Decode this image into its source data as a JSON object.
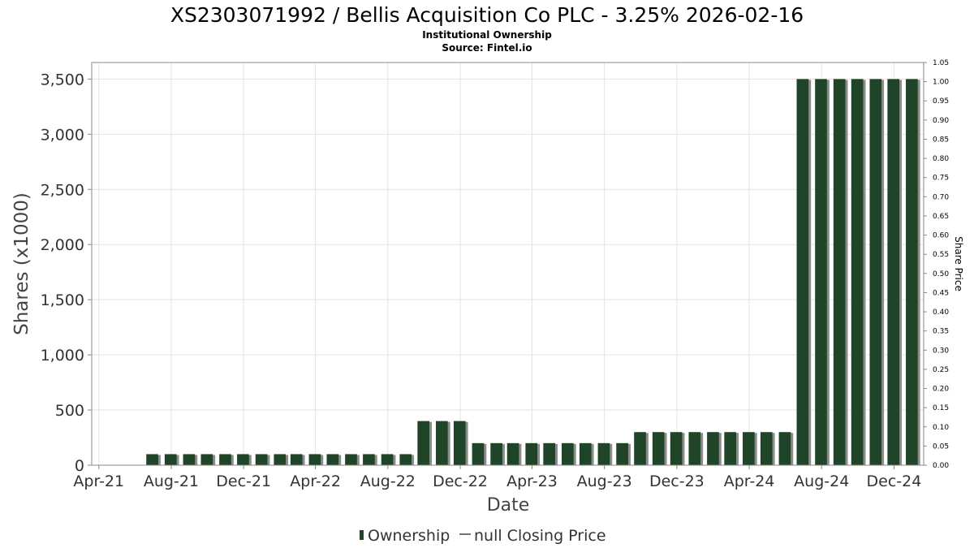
{
  "chart_data": {
    "type": "bar",
    "title": "XS2303071992 / Bellis Acquisition Co PLC - 3.25% 2026-02-16",
    "subtitle_lines": [
      "Institutional Ownership",
      "Source: Fintel.io"
    ],
    "xlabel": "Date",
    "ylabel": "Shares (x1000)",
    "y2label": "Share Price",
    "x_ticks": [
      "Apr-21",
      "Aug-21",
      "Dec-21",
      "Apr-22",
      "Aug-22",
      "Dec-22",
      "Apr-23",
      "Aug-23",
      "Dec-23",
      "Apr-24",
      "Aug-24",
      "Dec-24"
    ],
    "x_tick_dates": [
      "2021-04-01",
      "2021-08-01",
      "2021-12-01",
      "2022-04-01",
      "2022-08-01",
      "2022-12-01",
      "2023-04-01",
      "2023-08-01",
      "2023-12-01",
      "2024-04-01",
      "2024-08-01",
      "2024-12-01"
    ],
    "x_range": [
      "2021-03-20",
      "2025-01-20"
    ],
    "ylim": [
      0,
      3650
    ],
    "y_ticks": [
      0,
      500,
      1000,
      1500,
      2000,
      2500,
      3000,
      3500
    ],
    "y_tick_labels": [
      "0",
      "500",
      "1,000",
      "1,500",
      "2,000",
      "2,500",
      "3,000",
      "3,500"
    ],
    "y2lim": [
      0,
      1.05
    ],
    "y2_tick_labels": [
      "0.00",
      "0.05",
      "0.10",
      "0.15",
      "0.20",
      "0.25",
      "0.30",
      "0.35",
      "0.40",
      "0.45",
      "0.50",
      "0.55",
      "0.60",
      "0.65",
      "0.70",
      "0.75",
      "0.80",
      "0.85",
      "0.90",
      "0.95",
      "1.00",
      "1.05"
    ],
    "grid": true,
    "legend_placement": "bottom-center",
    "series": [
      {
        "name": "Ownership",
        "color": "#1f4428",
        "dates": [
          "2021-06-30",
          "2021-07-31",
          "2021-08-31",
          "2021-09-30",
          "2021-10-31",
          "2021-11-30",
          "2021-12-31",
          "2022-01-31",
          "2022-02-28",
          "2022-03-31",
          "2022-04-30",
          "2022-05-31",
          "2022-06-30",
          "2022-07-31",
          "2022-08-31",
          "2022-09-30",
          "2022-10-31",
          "2022-11-30",
          "2022-12-31",
          "2023-01-31",
          "2023-02-28",
          "2023-03-31",
          "2023-04-30",
          "2023-05-31",
          "2023-06-30",
          "2023-07-31",
          "2023-08-31",
          "2023-09-30",
          "2023-10-31",
          "2023-11-30",
          "2023-12-31",
          "2024-01-31",
          "2024-02-29",
          "2024-03-31",
          "2024-04-30",
          "2024-05-31",
          "2024-06-30",
          "2024-07-31",
          "2024-08-31",
          "2024-09-30",
          "2024-10-31",
          "2024-11-30",
          "2024-12-31"
        ],
        "values": [
          100,
          100,
          100,
          100,
          100,
          100,
          100,
          100,
          100,
          100,
          100,
          100,
          100,
          100,
          100,
          400,
          400,
          400,
          200,
          200,
          200,
          200,
          200,
          200,
          200,
          200,
          200,
          300,
          300,
          300,
          300,
          300,
          300,
          300,
          300,
          300,
          3500,
          3500,
          3500,
          3500,
          3500,
          3500,
          3500
        ]
      }
    ],
    "legend": [
      {
        "label": "Ownership",
        "color": "#1f4428",
        "marker": "bar"
      },
      {
        "label": "null Closing Price",
        "color": "#444444",
        "marker": "line"
      }
    ]
  }
}
